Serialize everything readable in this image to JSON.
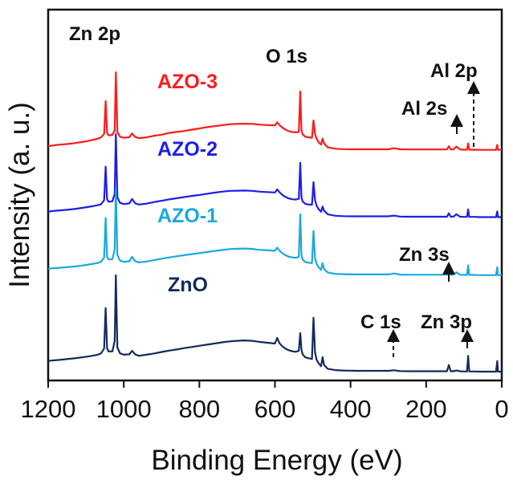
{
  "chart_data": {
    "type": "line",
    "xlabel": "Binding Energy (eV)",
    "ylabel": "Intensity (a. u.)",
    "xlim": [
      1200,
      0
    ],
    "x_reversed": true,
    "xticks": [
      1200,
      1000,
      800,
      600,
      400,
      200,
      0
    ],
    "yticks_visible": false,
    "grid": false,
    "colors": {
      "ZnO": "#142a5c",
      "AZO-1": "#19a9e0",
      "AZO-2": "#1e1ee6",
      "AZO-3": "#ff1a1a",
      "axis": "#111111",
      "annotation": "#111111"
    },
    "series_labels": [
      "AZO-3",
      "AZO-2",
      "AZO-1",
      "ZnO"
    ],
    "series": [
      {
        "name": "AZO-3",
        "x": [
          1200,
          1190,
          1170,
          1150,
          1130,
          1110,
          1090,
          1070,
          1060,
          1052,
          1048,
          1044,
          1040,
          1030,
          1024,
          1021,
          1017,
          1010,
          1000,
          985,
          978,
          970,
          960,
          940,
          920,
          900,
          880,
          860,
          840,
          820,
          800,
          780,
          760,
          740,
          720,
          700,
          680,
          660,
          650,
          640,
          620,
          600,
          594,
          588,
          582,
          575,
          565,
          555,
          545,
          537,
          533,
          530,
          527,
          520,
          510,
          502,
          498,
          494,
          490,
          484,
          478,
          474,
          470,
          460,
          440,
          420,
          400,
          380,
          360,
          340,
          320,
          300,
          285,
          270,
          250,
          230,
          210,
          190,
          175,
          160,
          145,
          140,
          135,
          128,
          120,
          110,
          100,
          92,
          89,
          86,
          80,
          70,
          60,
          45,
          30,
          20,
          15,
          12,
          10,
          5,
          0
        ],
        "values": [
          1.6,
          1.9,
          2.4,
          2.7,
          3.2,
          3.8,
          4.5,
          5.4,
          6.2,
          8.0,
          25.0,
          8.5,
          7.2,
          7.5,
          10.0,
          40.0,
          9.0,
          6.5,
          6.0,
          6.3,
          8.2,
          6.4,
          5.8,
          6.2,
          7.0,
          7.6,
          8.5,
          9.0,
          9.5,
          10.2,
          10.8,
          11.5,
          12.0,
          12.5,
          13.0,
          13.2,
          13.3,
          13.2,
          13.0,
          12.8,
          12.6,
          12.4,
          14.0,
          12.6,
          11.5,
          10.5,
          9.5,
          9.0,
          8.8,
          9.0,
          30.0,
          10.0,
          7.8,
          6.5,
          6.2,
          6.0,
          15.0,
          8.0,
          5.5,
          3.5,
          2.4,
          5.5,
          3.0,
          1.0,
          0.3,
          0.1,
          0.0,
          0.0,
          0.0,
          0.0,
          0.0,
          0.0,
          0.6,
          0.0,
          -0.1,
          -0.1,
          -0.1,
          -0.1,
          -0.1,
          -0.1,
          -0.1,
          1.6,
          -0.1,
          -0.1,
          1.4,
          -0.1,
          -0.2,
          -0.2,
          3.0,
          -0.2,
          -0.2,
          -0.2,
          -0.3,
          -0.3,
          -0.3,
          -0.3,
          -0.3,
          2.3,
          -0.3,
          -0.3,
          -0.3
        ]
      },
      {
        "name": "AZO-2",
        "x": [
          1200,
          1190,
          1170,
          1150,
          1130,
          1110,
          1090,
          1070,
          1060,
          1052,
          1048,
          1044,
          1040,
          1030,
          1024,
          1021,
          1017,
          1010,
          1000,
          985,
          978,
          970,
          960,
          940,
          920,
          900,
          880,
          860,
          840,
          820,
          800,
          780,
          760,
          740,
          720,
          700,
          680,
          660,
          650,
          640,
          620,
          600,
          594,
          588,
          582,
          575,
          565,
          555,
          545,
          537,
          533,
          530,
          527,
          520,
          510,
          502,
          498,
          494,
          490,
          484,
          478,
          474,
          470,
          460,
          440,
          420,
          400,
          380,
          360,
          340,
          320,
          300,
          285,
          270,
          250,
          230,
          210,
          190,
          175,
          160,
          145,
          140,
          135,
          128,
          120,
          110,
          100,
          92,
          89,
          86,
          80,
          70,
          60,
          45,
          30,
          20,
          15,
          12,
          10,
          5,
          0
        ],
        "values": [
          2.6,
          2.9,
          3.3,
          3.6,
          4.0,
          4.6,
          5.2,
          5.9,
          6.5,
          8.6,
          26.0,
          9.0,
          7.8,
          8.0,
          12.0,
          43.0,
          10.0,
          7.2,
          6.6,
          6.9,
          9.2,
          7.0,
          6.3,
          6.8,
          7.6,
          8.3,
          9.0,
          9.6,
          10.2,
          10.8,
          11.3,
          11.9,
          12.5,
          13.0,
          13.4,
          13.5,
          13.6,
          13.4,
          13.2,
          13.0,
          12.8,
          12.6,
          14.2,
          12.7,
          11.6,
          10.6,
          9.6,
          9.1,
          8.9,
          9.3,
          28.0,
          10.2,
          8.0,
          6.7,
          6.3,
          6.2,
          18.0,
          8.6,
          5.8,
          3.8,
          2.6,
          5.3,
          3.1,
          1.2,
          0.5,
          0.3,
          0.2,
          0.2,
          0.2,
          0.2,
          0.2,
          0.2,
          0.6,
          0.1,
          0.0,
          0.0,
          0.0,
          0.0,
          0.0,
          0.0,
          0.0,
          1.8,
          0.0,
          0.0,
          1.3,
          0.0,
          -0.1,
          -0.1,
          3.8,
          -0.1,
          -0.1,
          -0.1,
          -0.2,
          -0.2,
          -0.2,
          -0.2,
          -0.2,
          2.8,
          -0.2,
          -0.2,
          -0.2
        ]
      },
      {
        "name": "AZO-1",
        "x": [
          1200,
          1190,
          1170,
          1150,
          1130,
          1110,
          1090,
          1070,
          1060,
          1052,
          1048,
          1044,
          1040,
          1030,
          1024,
          1021,
          1017,
          1010,
          1000,
          985,
          978,
          970,
          960,
          940,
          920,
          900,
          880,
          860,
          840,
          820,
          800,
          780,
          760,
          740,
          720,
          700,
          680,
          660,
          650,
          640,
          620,
          600,
          594,
          588,
          582,
          575,
          565,
          555,
          545,
          537,
          533,
          530,
          527,
          520,
          510,
          502,
          498,
          494,
          490,
          484,
          478,
          474,
          470,
          460,
          440,
          420,
          400,
          380,
          360,
          340,
          320,
          300,
          285,
          270,
          250,
          230,
          210,
          190,
          175,
          160,
          145,
          140,
          135,
          128,
          120,
          110,
          100,
          92,
          89,
          86,
          80,
          70,
          60,
          45,
          30,
          20,
          15,
          12,
          10,
          5,
          0
        ],
        "values": [
          3.5,
          3.8,
          4.1,
          4.4,
          4.8,
          5.3,
          5.9,
          6.6,
          7.4,
          9.6,
          31.0,
          9.9,
          8.6,
          8.8,
          14.0,
          47.0,
          11.0,
          8.0,
          7.3,
          7.6,
          10.0,
          7.7,
          7.0,
          7.5,
          8.2,
          9.0,
          9.7,
          10.3,
          10.9,
          11.5,
          12.0,
          12.6,
          13.2,
          13.7,
          14.2,
          14.4,
          14.5,
          14.3,
          14.0,
          13.8,
          13.5,
          13.3,
          15.0,
          13.4,
          12.2,
          11.2,
          10.2,
          9.7,
          9.5,
          9.9,
          33.0,
          11.0,
          8.6,
          7.2,
          6.8,
          6.6,
          24.0,
          9.3,
          6.2,
          4.2,
          2.9,
          6.6,
          3.4,
          1.5,
          0.8,
          0.6,
          0.5,
          0.5,
          0.5,
          0.5,
          0.5,
          0.5,
          1.0,
          0.4,
          0.3,
          0.3,
          0.3,
          0.3,
          0.3,
          0.3,
          0.3,
          2.6,
          0.3,
          0.3,
          1.6,
          0.3,
          0.2,
          0.2,
          5.4,
          0.2,
          0.2,
          0.2,
          0.1,
          0.1,
          0.1,
          0.1,
          0.1,
          4.4,
          0.1,
          0.1,
          0.1
        ]
      },
      {
        "name": "ZnO",
        "x": [
          1200,
          1190,
          1170,
          1150,
          1130,
          1110,
          1090,
          1070,
          1060,
          1052,
          1048,
          1044,
          1040,
          1030,
          1024,
          1021,
          1017,
          1010,
          1000,
          985,
          978,
          970,
          960,
          940,
          920,
          900,
          880,
          860,
          840,
          820,
          800,
          780,
          760,
          740,
          720,
          700,
          680,
          660,
          650,
          640,
          620,
          600,
          594,
          588,
          582,
          575,
          565,
          555,
          545,
          537,
          533,
          530,
          527,
          520,
          510,
          502,
          498,
          494,
          490,
          484,
          478,
          474,
          470,
          460,
          440,
          420,
          400,
          380,
          360,
          340,
          320,
          300,
          285,
          270,
          250,
          230,
          210,
          190,
          175,
          160,
          145,
          140,
          135,
          128,
          120,
          110,
          100,
          92,
          89,
          86,
          80,
          70,
          60,
          45,
          30,
          20,
          15,
          12,
          10,
          5,
          0
        ],
        "values": [
          5.5,
          5.8,
          6.1,
          6.5,
          6.9,
          7.4,
          8.0,
          8.7,
          9.5,
          12.0,
          33.0,
          12.0,
          10.5,
          10.5,
          16.0,
          50.0,
          12.5,
          9.5,
          8.8,
          9.0,
          10.8,
          9.0,
          8.2,
          8.8,
          9.4,
          10.2,
          10.9,
          11.5,
          12.2,
          12.8,
          13.4,
          14.0,
          14.6,
          15.2,
          15.7,
          16.0,
          16.2,
          16.0,
          15.7,
          15.4,
          15.0,
          14.6,
          17.5,
          14.8,
          13.4,
          12.3,
          11.2,
          10.6,
          10.3,
          10.8,
          20.0,
          11.4,
          9.0,
          7.4,
          6.9,
          6.6,
          28.0,
          10.0,
          6.2,
          4.2,
          2.8,
          7.5,
          3.4,
          1.4,
          0.8,
          0.6,
          0.5,
          0.4,
          0.4,
          0.4,
          0.4,
          0.4,
          0.7,
          0.3,
          0.2,
          0.2,
          0.2,
          0.2,
          0.2,
          0.2,
          0.2,
          3.4,
          0.2,
          0.2,
          0.6,
          0.2,
          0.1,
          0.1,
          8.2,
          0.1,
          0.1,
          0.1,
          0.0,
          0.0,
          0.0,
          0.0,
          0.0,
          5.5,
          0.0,
          0.0,
          0.0
        ]
      }
    ],
    "annotations": [
      {
        "text": "Zn 2p"
      },
      {
        "text": "O 1s"
      },
      {
        "text": "Al 2p"
      },
      {
        "text": "Al 2s"
      },
      {
        "text": "Zn 3s"
      },
      {
        "text": "C 1s"
      },
      {
        "text": "Zn 3p"
      }
    ]
  }
}
